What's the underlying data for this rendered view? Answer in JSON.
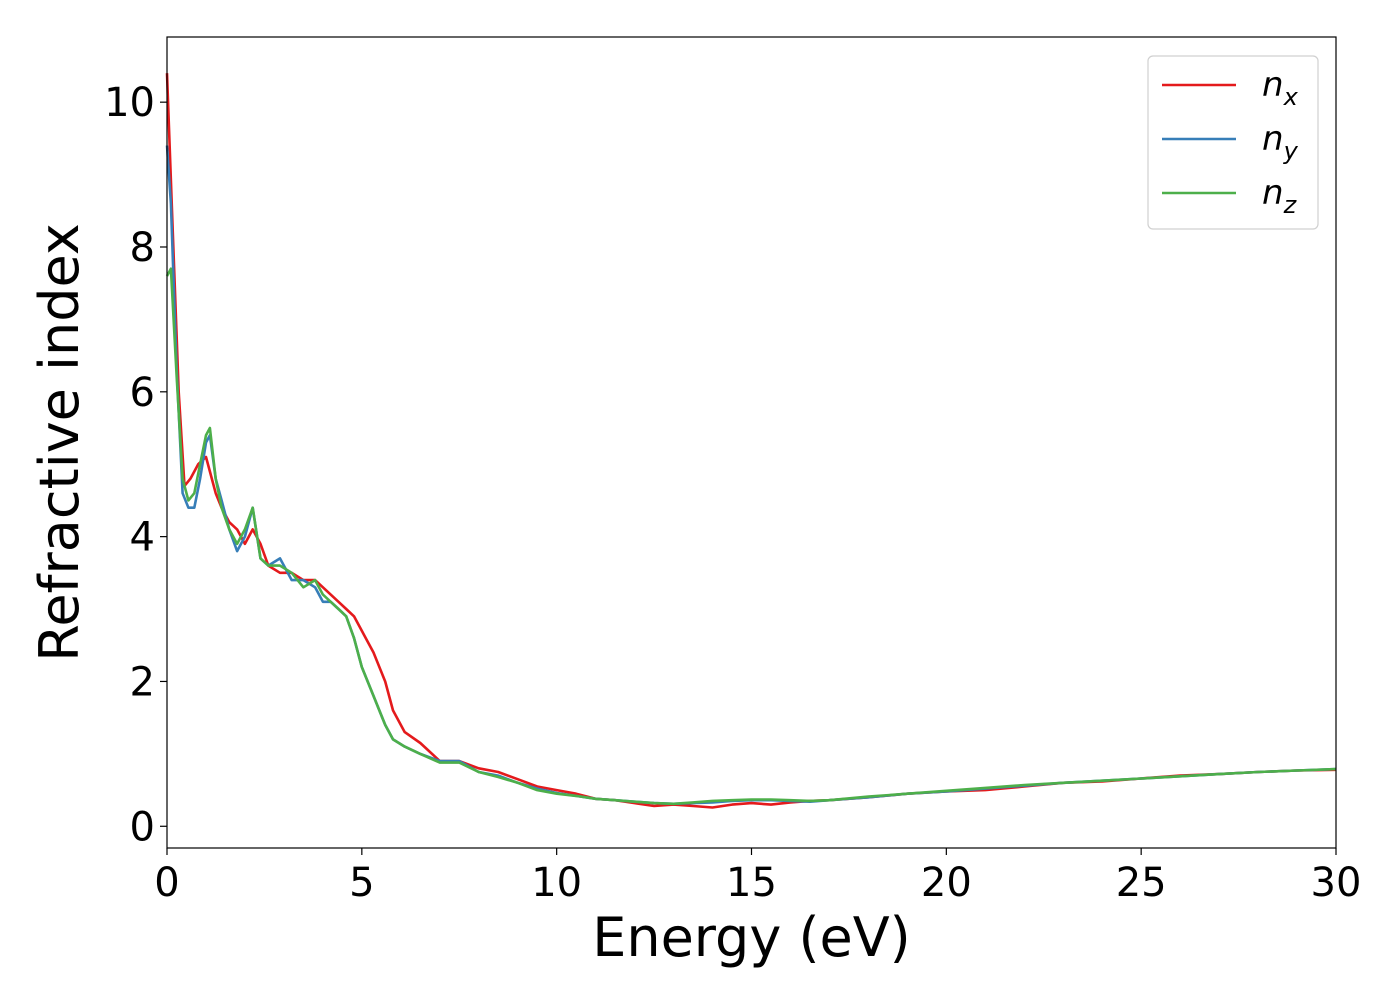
{
  "chart_data": {
    "type": "line",
    "xlabel": "Energy (eV)",
    "ylabel": "Refractive index",
    "xlim": [
      0,
      30
    ],
    "ylim": [
      -0.3,
      10.9
    ],
    "xticks": [
      0,
      5,
      10,
      15,
      20,
      25,
      30
    ],
    "yticks": [
      0,
      2,
      4,
      6,
      8,
      10
    ],
    "grid": false,
    "legend_position": "top-right",
    "series": [
      {
        "name": "n_x",
        "label_base": "n",
        "label_sub": "x",
        "color": "#e41a1c",
        "x": [
          0,
          0.15,
          0.3,
          0.45,
          0.6,
          0.8,
          1.0,
          1.1,
          1.25,
          1.4,
          1.6,
          1.8,
          2.0,
          2.2,
          2.4,
          2.6,
          2.9,
          3.2,
          3.5,
          3.8,
          4.0,
          4.2,
          4.4,
          4.6,
          4.8,
          5.0,
          5.3,
          5.6,
          5.8,
          6.1,
          6.5,
          7.0,
          7.5,
          8.0,
          8.5,
          9.0,
          9.5,
          10.0,
          10.5,
          11.0,
          11.5,
          12.0,
          12.5,
          13.0,
          13.5,
          14.0,
          14.5,
          15.0,
          15.5,
          16.0,
          16.5,
          17.0,
          18.0,
          19.0,
          20.0,
          21.0,
          22.0,
          23.0,
          24.0,
          25.0,
          26.0,
          27.0,
          28.0,
          29.0,
          30.0
        ],
        "y": [
          10.4,
          8.2,
          6.0,
          4.7,
          4.8,
          5.0,
          5.1,
          4.9,
          4.6,
          4.4,
          4.2,
          4.1,
          3.9,
          4.1,
          3.9,
          3.6,
          3.5,
          3.5,
          3.4,
          3.4,
          3.3,
          3.2,
          3.1,
          3.0,
          2.9,
          2.7,
          2.4,
          2.0,
          1.6,
          1.3,
          1.15,
          0.9,
          0.9,
          0.8,
          0.75,
          0.65,
          0.55,
          0.5,
          0.45,
          0.38,
          0.36,
          0.32,
          0.28,
          0.3,
          0.28,
          0.26,
          0.3,
          0.32,
          0.3,
          0.33,
          0.35,
          0.36,
          0.4,
          0.45,
          0.48,
          0.5,
          0.55,
          0.6,
          0.62,
          0.66,
          0.7,
          0.72,
          0.75,
          0.77,
          0.78
        ]
      },
      {
        "name": "n_y",
        "label_base": "n",
        "label_sub": "y",
        "color": "#377eb8",
        "x": [
          0,
          0.1,
          0.25,
          0.4,
          0.55,
          0.7,
          0.85,
          1.0,
          1.1,
          1.25,
          1.4,
          1.6,
          1.8,
          2.0,
          2.2,
          2.4,
          2.6,
          2.9,
          3.2,
          3.5,
          3.8,
          4.0,
          4.2,
          4.4,
          4.6,
          4.8,
          5.0,
          5.3,
          5.6,
          5.8,
          6.1,
          6.5,
          7.0,
          7.5,
          8.0,
          8.5,
          9.0,
          9.5,
          10.0,
          10.5,
          11.0,
          11.5,
          12.0,
          12.5,
          13.0,
          13.5,
          14.0,
          14.5,
          15.0,
          15.5,
          16.0,
          16.5,
          17.0,
          18.0,
          19.0,
          20.0,
          21.0,
          22.0,
          23.0,
          24.0,
          25.0,
          26.0,
          27.0,
          28.0,
          29.0,
          30.0
        ],
        "y": [
          9.4,
          8.6,
          6.3,
          4.6,
          4.4,
          4.4,
          4.8,
          5.3,
          5.4,
          4.8,
          4.5,
          4.1,
          3.8,
          4.0,
          4.4,
          3.7,
          3.6,
          3.7,
          3.4,
          3.4,
          3.3,
          3.1,
          3.1,
          3.0,
          2.9,
          2.6,
          2.2,
          1.8,
          1.4,
          1.2,
          1.1,
          1.0,
          0.9,
          0.9,
          0.75,
          0.7,
          0.6,
          0.52,
          0.46,
          0.42,
          0.38,
          0.36,
          0.34,
          0.32,
          0.31,
          0.32,
          0.33,
          0.35,
          0.36,
          0.36,
          0.35,
          0.34,
          0.36,
          0.4,
          0.45,
          0.48,
          0.52,
          0.56,
          0.6,
          0.63,
          0.66,
          0.69,
          0.72,
          0.75,
          0.77,
          0.79
        ]
      },
      {
        "name": "n_z",
        "label_base": "n",
        "label_sub": "z",
        "color": "#4daf4a",
        "x": [
          0,
          0.1,
          0.25,
          0.4,
          0.55,
          0.7,
          0.85,
          1.0,
          1.1,
          1.25,
          1.4,
          1.6,
          1.8,
          2.0,
          2.2,
          2.4,
          2.6,
          2.9,
          3.2,
          3.5,
          3.8,
          4.0,
          4.2,
          4.4,
          4.6,
          4.8,
          5.0,
          5.3,
          5.6,
          5.8,
          6.1,
          6.5,
          7.0,
          7.5,
          8.0,
          8.5,
          9.0,
          9.5,
          10.0,
          10.5,
          11.0,
          11.5,
          12.0,
          12.5,
          13.0,
          13.5,
          14.0,
          14.5,
          15.0,
          15.5,
          16.0,
          16.5,
          17.0,
          18.0,
          19.0,
          20.0,
          21.0,
          22.0,
          23.0,
          24.0,
          25.0,
          26.0,
          27.0,
          28.0,
          29.0,
          30.0
        ],
        "y": [
          7.6,
          7.7,
          6.2,
          4.8,
          4.5,
          4.6,
          5.0,
          5.4,
          5.5,
          4.8,
          4.4,
          4.1,
          3.9,
          4.1,
          4.4,
          3.7,
          3.6,
          3.6,
          3.5,
          3.3,
          3.4,
          3.2,
          3.1,
          3.0,
          2.9,
          2.6,
          2.2,
          1.8,
          1.4,
          1.2,
          1.1,
          1.0,
          0.88,
          0.88,
          0.75,
          0.68,
          0.6,
          0.5,
          0.45,
          0.42,
          0.38,
          0.36,
          0.34,
          0.32,
          0.31,
          0.33,
          0.35,
          0.36,
          0.37,
          0.37,
          0.36,
          0.35,
          0.36,
          0.41,
          0.45,
          0.49,
          0.53,
          0.57,
          0.6,
          0.63,
          0.66,
          0.69,
          0.72,
          0.75,
          0.77,
          0.79
        ]
      }
    ]
  }
}
